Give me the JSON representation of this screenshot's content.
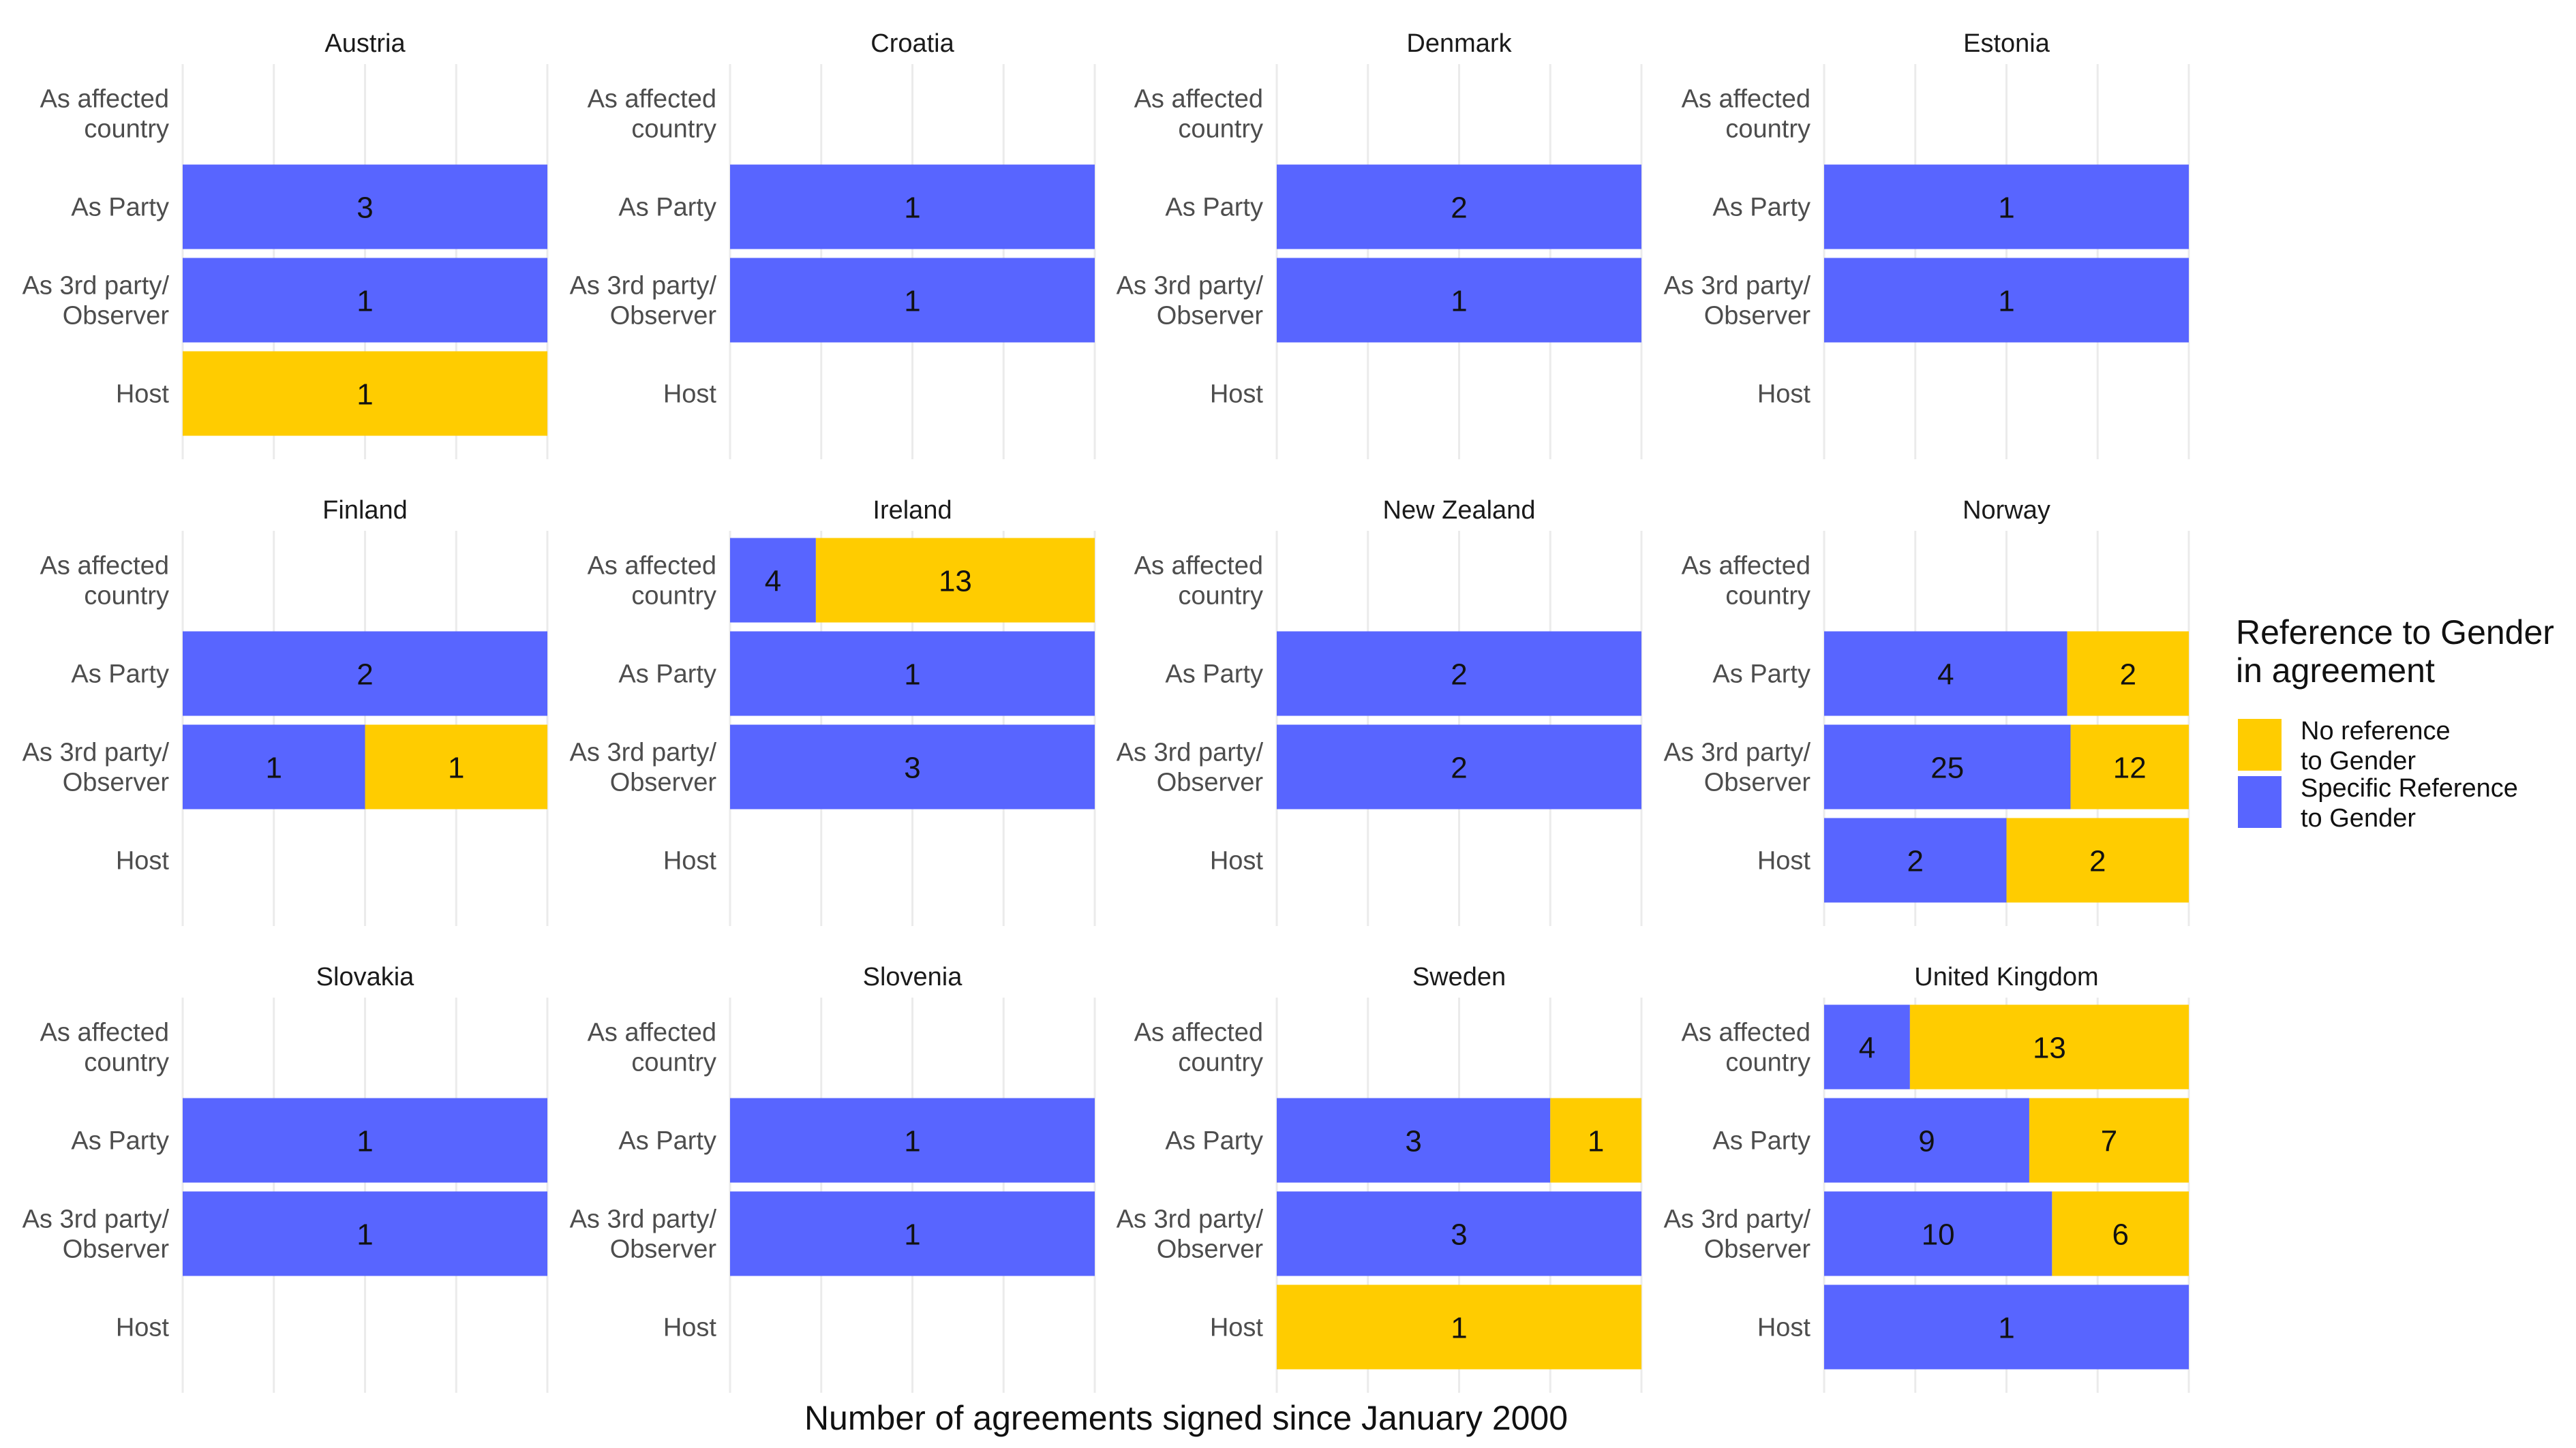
{
  "chart_data": {
    "type": "bar",
    "orientation": "horizontal",
    "stacked": true,
    "normalized": true,
    "facet": "country",
    "xlabel": "Number of agreements signed since January 2000",
    "ylabel": "",
    "categories": [
      "As affected\ncountry",
      "As Party",
      "As 3rd party/\nObserver",
      "Host"
    ],
    "grid": true,
    "legend": {
      "title": "Reference to Gender\nin agreement",
      "position": "right",
      "entries": [
        {
          "key": "no_ref",
          "label": "No reference\nto Gender",
          "color": "#FFCC00"
        },
        {
          "key": "specific",
          "label": "Specific Reference\nto Gender",
          "color": "#5865FF"
        }
      ]
    },
    "panels": [
      {
        "country": "Austria",
        "rows": [
          null,
          {
            "specific": 3,
            "no_ref": 0
          },
          {
            "specific": 1,
            "no_ref": 0
          },
          {
            "specific": 0,
            "no_ref": 1
          }
        ]
      },
      {
        "country": "Croatia",
        "rows": [
          null,
          {
            "specific": 1,
            "no_ref": 0
          },
          {
            "specific": 1,
            "no_ref": 0
          },
          null
        ]
      },
      {
        "country": "Denmark",
        "rows": [
          null,
          {
            "specific": 2,
            "no_ref": 0
          },
          {
            "specific": 1,
            "no_ref": 0
          },
          null
        ]
      },
      {
        "country": "Estonia",
        "rows": [
          null,
          {
            "specific": 1,
            "no_ref": 0
          },
          {
            "specific": 1,
            "no_ref": 0
          },
          null
        ]
      },
      {
        "country": "Finland",
        "rows": [
          null,
          {
            "specific": 2,
            "no_ref": 0
          },
          {
            "specific": 1,
            "no_ref": 1
          },
          null
        ]
      },
      {
        "country": "Ireland",
        "rows": [
          {
            "specific": 4,
            "no_ref": 13
          },
          {
            "specific": 1,
            "no_ref": 0
          },
          {
            "specific": 3,
            "no_ref": 0
          },
          null
        ]
      },
      {
        "country": "New Zealand",
        "rows": [
          null,
          {
            "specific": 2,
            "no_ref": 0
          },
          {
            "specific": 2,
            "no_ref": 0
          },
          null
        ]
      },
      {
        "country": "Norway",
        "rows": [
          null,
          {
            "specific": 4,
            "no_ref": 2
          },
          {
            "specific": 25,
            "no_ref": 12
          },
          {
            "specific": 2,
            "no_ref": 2
          }
        ]
      },
      {
        "country": "Slovakia",
        "rows": [
          null,
          {
            "specific": 1,
            "no_ref": 0
          },
          {
            "specific": 1,
            "no_ref": 0
          },
          null
        ]
      },
      {
        "country": "Slovenia",
        "rows": [
          null,
          {
            "specific": 1,
            "no_ref": 0
          },
          {
            "specific": 1,
            "no_ref": 0
          },
          null
        ]
      },
      {
        "country": "Sweden",
        "rows": [
          null,
          {
            "specific": 3,
            "no_ref": 1
          },
          {
            "specific": 3,
            "no_ref": 0
          },
          {
            "specific": 0,
            "no_ref": 1
          }
        ]
      },
      {
        "country": "United Kingdom",
        "rows": [
          {
            "specific": 4,
            "no_ref": 13
          },
          {
            "specific": 9,
            "no_ref": 7
          },
          {
            "specific": 10,
            "no_ref": 6
          },
          {
            "specific": 1,
            "no_ref": 0
          }
        ]
      }
    ]
  }
}
